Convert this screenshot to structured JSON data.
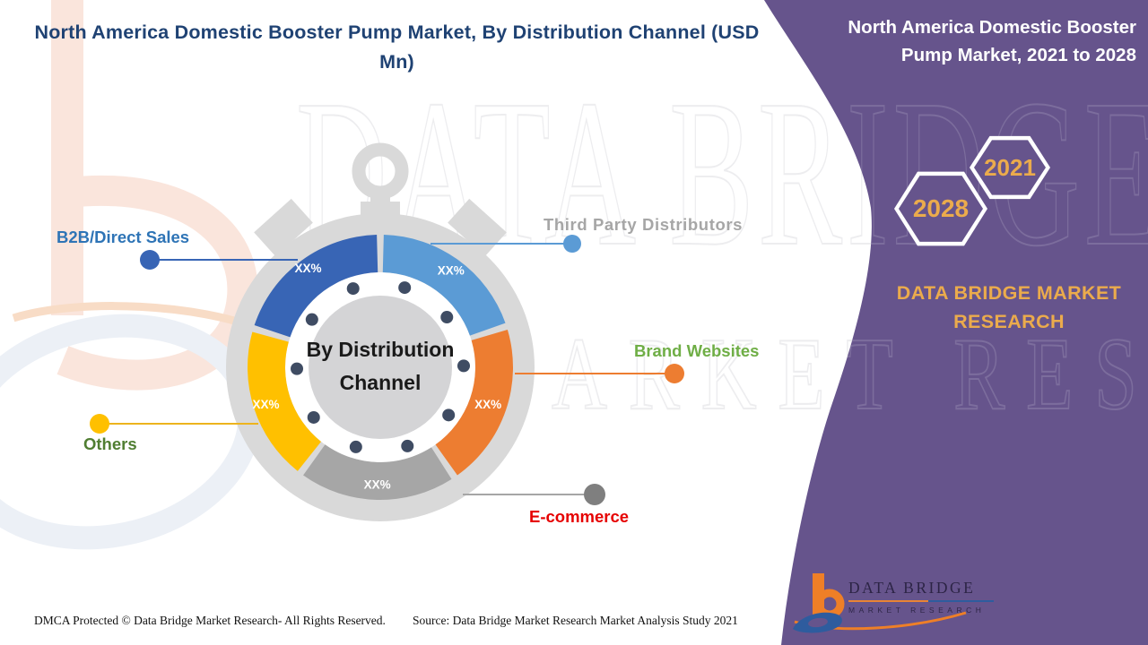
{
  "title_lines": [
    "North America Domestic Booster Pump Market, By Distribution Channel (USD",
    "Mn)"
  ],
  "chart_data": {
    "type": "pie",
    "style": "donut-stopwatch",
    "title": "By Distribution Channel",
    "legend_position": "callouts",
    "segments": [
      {
        "label": "Third Party Distributors",
        "value": "XX%",
        "color": "#5B9BD5",
        "label_color": "#A6A6A6"
      },
      {
        "label": "Brand Websites",
        "value": "XX%",
        "color": "#ED7D31",
        "label_color": "#6FAE46"
      },
      {
        "label": "E-commerce",
        "value": "XX%",
        "color": "#A6A6A6",
        "label_color": "#E60000"
      },
      {
        "label": "Others",
        "value": "XX%",
        "color": "#FFC000",
        "label_color": "#507E32"
      },
      {
        "label": "B2B/Direct Sales",
        "value": "XX%",
        "color": "#3865B5",
        "label_color": "#2E74B6"
      }
    ]
  },
  "panel": {
    "heading_lines": [
      "North America Domestic Booster",
      "Pump Market, 2021 to 2028"
    ],
    "hexagons": [
      "2028",
      "2021"
    ],
    "brand": "DATA BRIDGE MARKET RESEARCH",
    "background_color": "#66548C",
    "accent_gold": "#EBAB4C"
  },
  "brand_logo": {
    "title": "DATA BRIDGE",
    "subtitle": "MARKET RESEARCH"
  },
  "watermark": {
    "line1": "DATA BRIDGE",
    "line2": "MARKET RESEARCH"
  },
  "footer": {
    "dmca": "DMCA Protected © Data Bridge Market Research- All Rights Reserved.",
    "source": "Source: Data Bridge Market Research Market Analysis Study 2021"
  }
}
